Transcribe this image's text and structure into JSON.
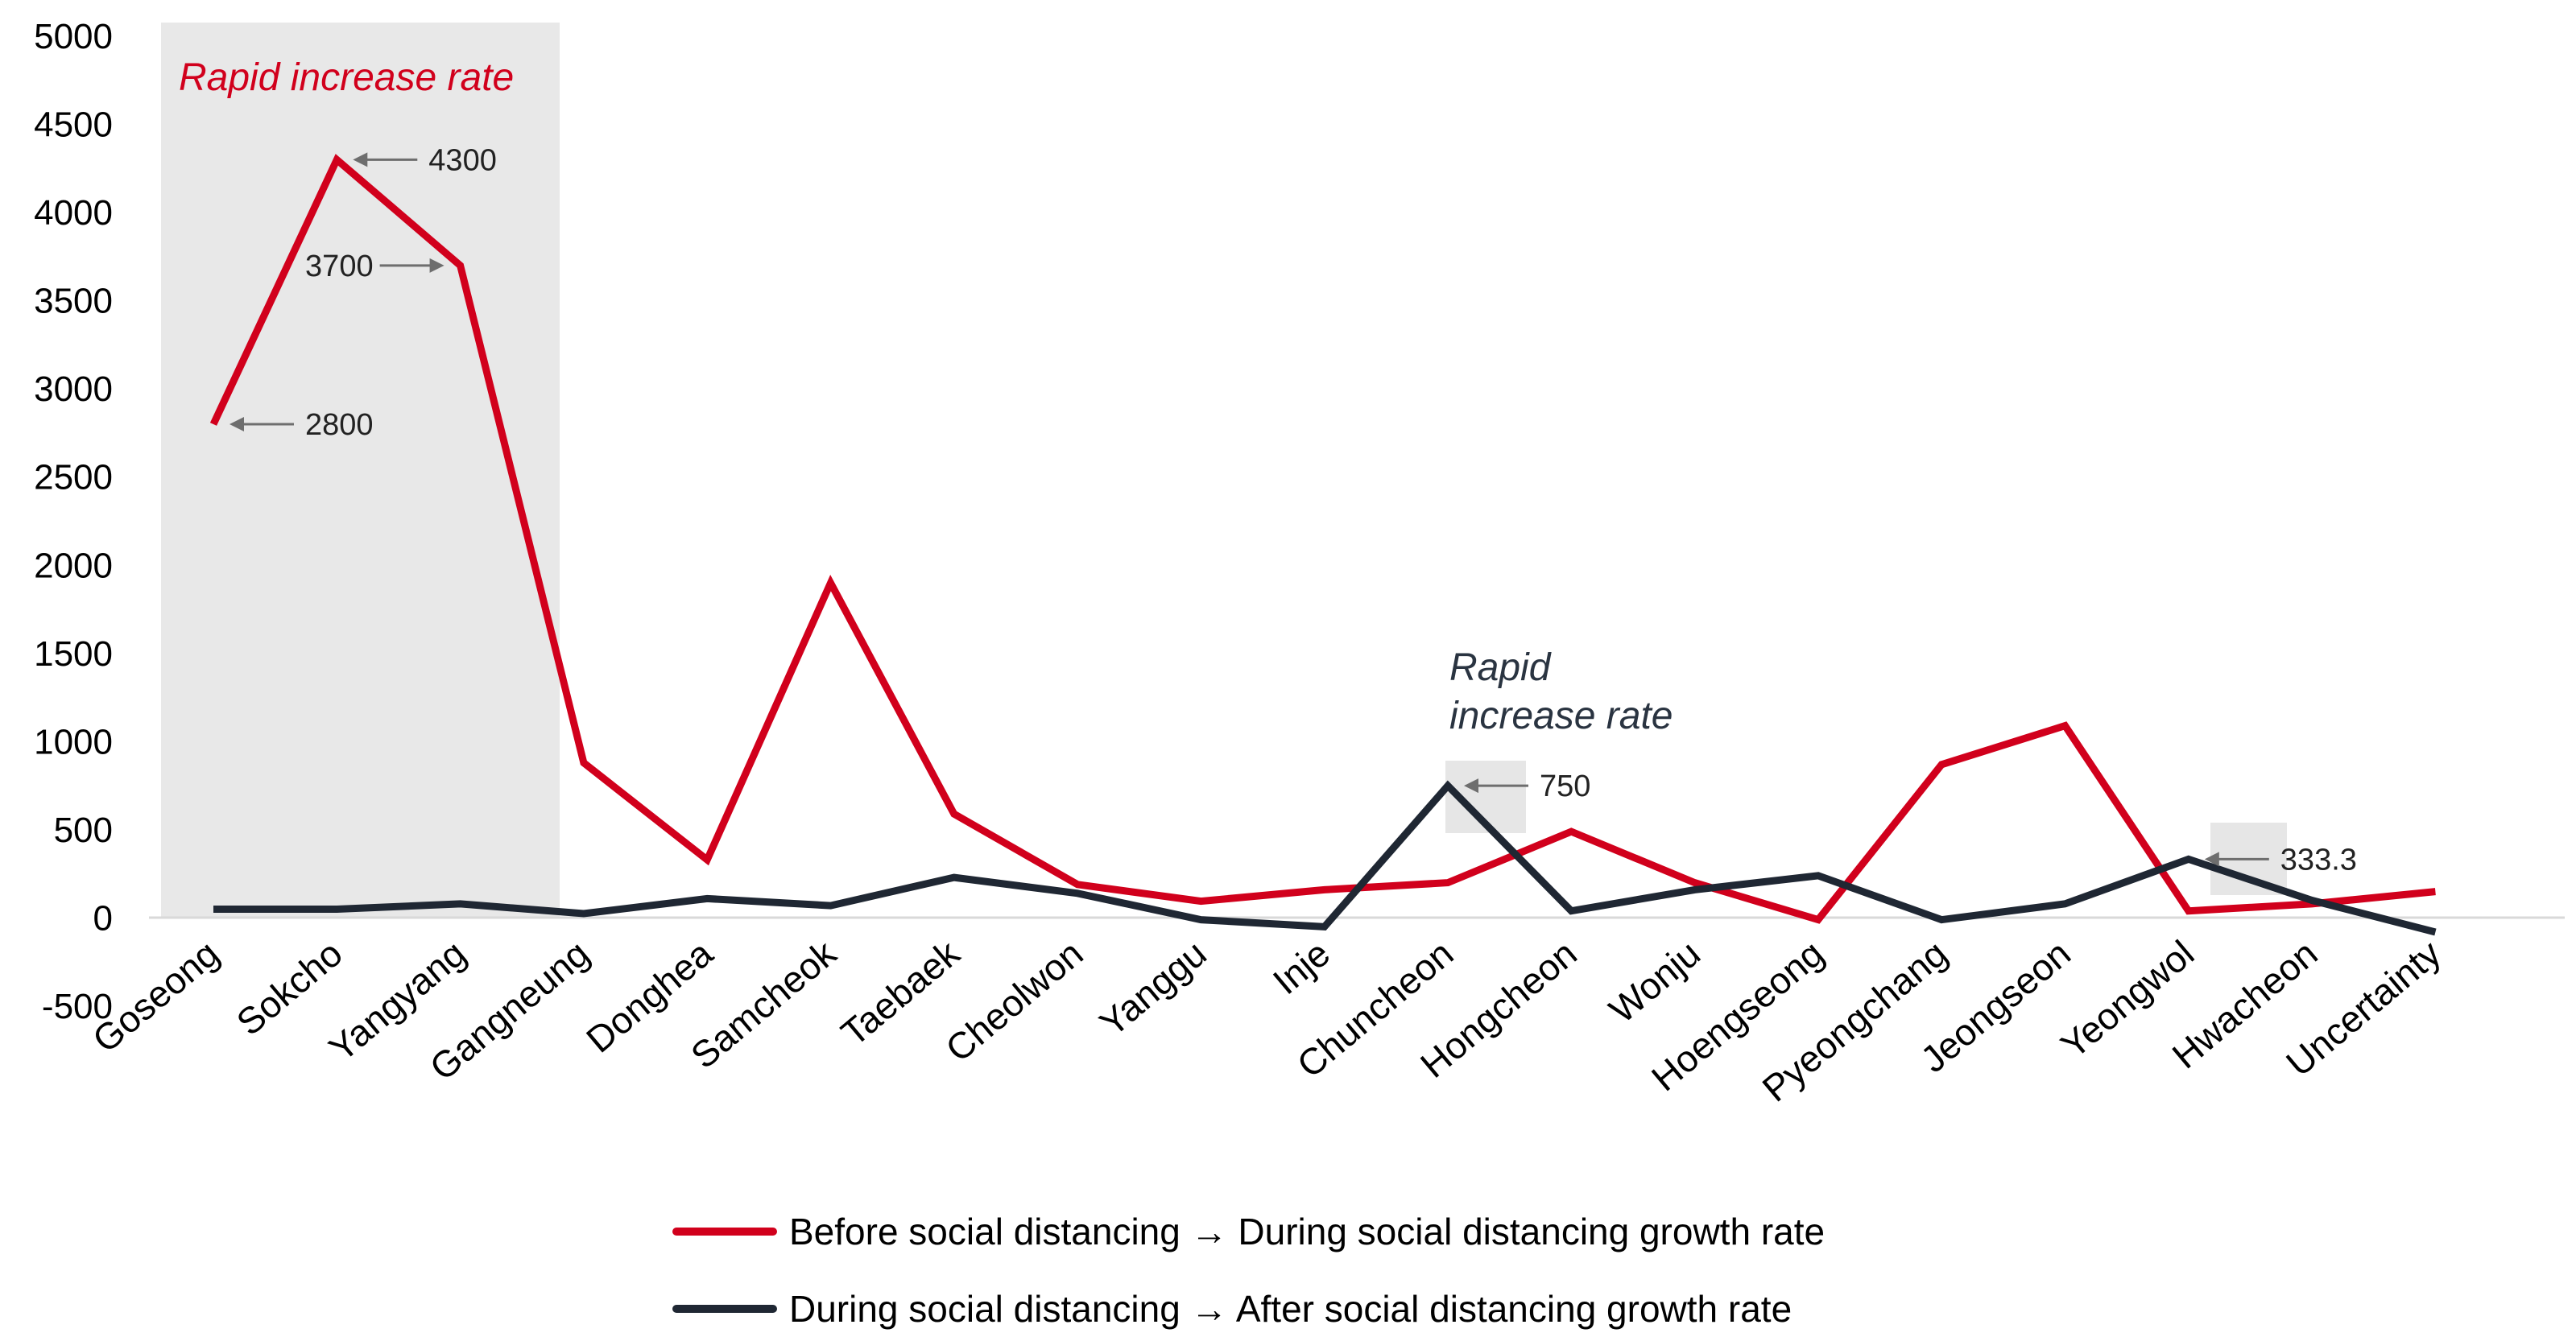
{
  "chart_data": {
    "type": "line",
    "categories": [
      "Goseong",
      "Sokcho",
      "Yangyang",
      "Gangneung",
      "Donghea",
      "Samcheok",
      "Taebaek",
      "Cheolwon",
      "Yanggu",
      "Inje",
      "Chuncheon",
      "Hongcheon",
      "Wonju",
      "Hoengseong",
      "Pyeongchang",
      "Jeongseon",
      "Yeongwol",
      "Hwacheon",
      "Uncertainty"
    ],
    "series": [
      {
        "name": "Before social distancing → During social distancing growth rate",
        "color": "#d1001c",
        "values": [
          2800,
          4300,
          3700,
          880,
          330,
          1900,
          590,
          190,
          95,
          160,
          200,
          490,
          200,
          -10,
          870,
          1090,
          40,
          80,
          150
        ]
      },
      {
        "name": "During social distancing → After social distancing growth rate",
        "color": "#1f2733",
        "values": [
          50,
          50,
          80,
          25,
          110,
          70,
          230,
          140,
          -10,
          -50,
          750,
          40,
          160,
          240,
          -10,
          80,
          333.3,
          100,
          -80
        ]
      }
    ],
    "ylim": [
      -500,
      5000
    ],
    "yticks": [
      -500,
      0,
      500,
      1000,
      1500,
      2000,
      2500,
      3000,
      3500,
      4000,
      4500,
      5000
    ],
    "grid": false,
    "legend_position": "bottom-center",
    "annotations": [
      {
        "series": 0,
        "index": 0,
        "label": "2800",
        "side": "right"
      },
      {
        "series": 0,
        "index": 1,
        "label": "4300",
        "side": "right"
      },
      {
        "series": 0,
        "index": 2,
        "label": "3700",
        "side": "left"
      },
      {
        "series": 1,
        "index": 10,
        "label": "750",
        "side": "right"
      },
      {
        "series": 1,
        "index": 16,
        "label": "333.3",
        "side": "right"
      }
    ],
    "highlights": [
      {
        "label": "Rapid increase rate",
        "color": "#d1001c"
      },
      {
        "label_lines": [
          "Rapid",
          "increase rate"
        ],
        "color": "#2a3441"
      }
    ]
  }
}
